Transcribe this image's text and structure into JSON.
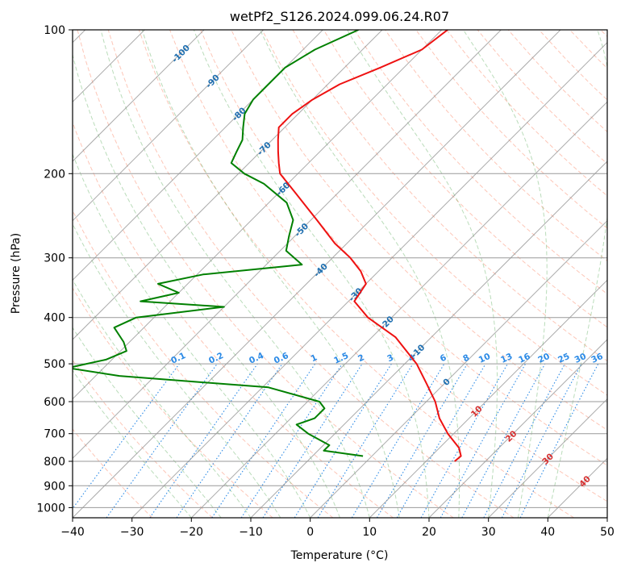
{
  "chart_data": {
    "type": "line",
    "subtype": "skew-t log-p diagram",
    "title": "wetPf2_S126.2024.099.06.24.R07",
    "xlabel": "Temperature (°C)",
    "ylabel": "Pressure (hPa)",
    "xlim": [
      -40,
      50
    ],
    "ylim": [
      1050,
      100
    ],
    "y_scale": "log",
    "grid": true,
    "x_ticks": [
      -40,
      -30,
      -20,
      -10,
      0,
      10,
      20,
      30,
      40,
      50
    ],
    "x_tick_labels": [
      "−40",
      "−30",
      "−20",
      "−10",
      "0",
      "10",
      "20",
      "30",
      "40",
      "50"
    ],
    "y_ticks": [
      100,
      200,
      300,
      400,
      500,
      600,
      700,
      800,
      900,
      1000
    ],
    "y_tick_labels": [
      "100",
      "200",
      "300",
      "400",
      "500",
      "600",
      "700",
      "800",
      "900",
      "1000"
    ],
    "isotherm_labels": [
      {
        "temp": -100,
        "text": "-100"
      },
      {
        "temp": -90,
        "text": "-90"
      },
      {
        "temp": -80,
        "text": "-80"
      },
      {
        "temp": -70,
        "text": "-70"
      },
      {
        "temp": -60,
        "text": "-60"
      },
      {
        "temp": -50,
        "text": "-50"
      },
      {
        "temp": -40,
        "text": "-40"
      },
      {
        "temp": -30,
        "text": "-30"
      },
      {
        "temp": -20,
        "text": "-20"
      },
      {
        "temp": -10,
        "text": "-10"
      },
      {
        "temp": 0,
        "text": "0"
      },
      {
        "temp": 10,
        "text": "10"
      },
      {
        "temp": 20,
        "text": "20"
      },
      {
        "temp": 30,
        "text": "30"
      },
      {
        "temp": 40,
        "text": "40"
      }
    ],
    "mixing_ratio_labels": [
      "0.1",
      "0.2",
      "0.4",
      "0.6",
      "1",
      "1.5",
      "2",
      "3",
      "4",
      "6",
      "8",
      "10",
      "13",
      "16",
      "20",
      "25",
      "30",
      "36"
    ],
    "series": [
      {
        "key": "temperature",
        "color": "#ee1111",
        "points": [
          {
            "p": 100,
            "t": -59
          },
          {
            "p": 110,
            "t": -60
          },
          {
            "p": 120,
            "t": -64
          },
          {
            "p": 130,
            "t": -68
          },
          {
            "p": 140,
            "t": -70
          },
          {
            "p": 150,
            "t": -71
          },
          {
            "p": 160,
            "t": -71
          },
          {
            "p": 170,
            "t": -69
          },
          {
            "p": 180,
            "t": -67
          },
          {
            "p": 190,
            "t": -65
          },
          {
            "p": 200,
            "t": -63
          },
          {
            "p": 220,
            "t": -57
          },
          {
            "p": 250,
            "t": -49
          },
          {
            "p": 280,
            "t": -42
          },
          {
            "p": 300,
            "t": -37
          },
          {
            "p": 320,
            "t": -33
          },
          {
            "p": 340,
            "t": -30
          },
          {
            "p": 370,
            "t": -29
          },
          {
            "p": 400,
            "t": -24
          },
          {
            "p": 440,
            "t": -16
          },
          {
            "p": 500,
            "t": -8
          },
          {
            "p": 550,
            "t": -3
          },
          {
            "p": 600,
            "t": 1.5
          },
          {
            "p": 650,
            "t": 5
          },
          {
            "p": 700,
            "t": 9
          },
          {
            "p": 750,
            "t": 13.3
          },
          {
            "p": 780,
            "t": 15
          },
          {
            "p": 800,
            "t": 14.8
          }
        ]
      },
      {
        "key": "dewpoint",
        "color": "#008000",
        "points": [
          {
            "p": 100,
            "t": -74
          },
          {
            "p": 110,
            "t": -78
          },
          {
            "p": 120,
            "t": -80
          },
          {
            "p": 130,
            "t": -80
          },
          {
            "p": 140,
            "t": -80
          },
          {
            "p": 150,
            "t": -79
          },
          {
            "p": 160,
            "t": -77
          },
          {
            "p": 170,
            "t": -75
          },
          {
            "p": 180,
            "t": -74
          },
          {
            "p": 190,
            "t": -73
          },
          {
            "p": 200,
            "t": -69
          },
          {
            "p": 210,
            "t": -64
          },
          {
            "p": 230,
            "t": -57
          },
          {
            "p": 250,
            "t": -53
          },
          {
            "p": 270,
            "t": -51
          },
          {
            "p": 290,
            "t": -49
          },
          {
            "p": 310,
            "t": -44
          },
          {
            "p": 325,
            "t": -59
          },
          {
            "p": 340,
            "t": -65
          },
          {
            "p": 355,
            "t": -60
          },
          {
            "p": 370,
            "t": -65
          },
          {
            "p": 380,
            "t": -50
          },
          {
            "p": 400,
            "t": -63
          },
          {
            "p": 420,
            "t": -65
          },
          {
            "p": 450,
            "t": -61
          },
          {
            "p": 470,
            "t": -59
          },
          {
            "p": 490,
            "t": -61
          },
          {
            "p": 510,
            "t": -66
          },
          {
            "p": 530,
            "t": -56
          },
          {
            "p": 560,
            "t": -29
          },
          {
            "p": 600,
            "t": -18
          },
          {
            "p": 620,
            "t": -16
          },
          {
            "p": 650,
            "t": -16
          },
          {
            "p": 670,
            "t": -18
          },
          {
            "p": 700,
            "t": -14.5
          },
          {
            "p": 740,
            "t": -9
          },
          {
            "p": 760,
            "t": -9
          },
          {
            "p": 780,
            "t": -1.5
          }
        ]
      }
    ]
  }
}
